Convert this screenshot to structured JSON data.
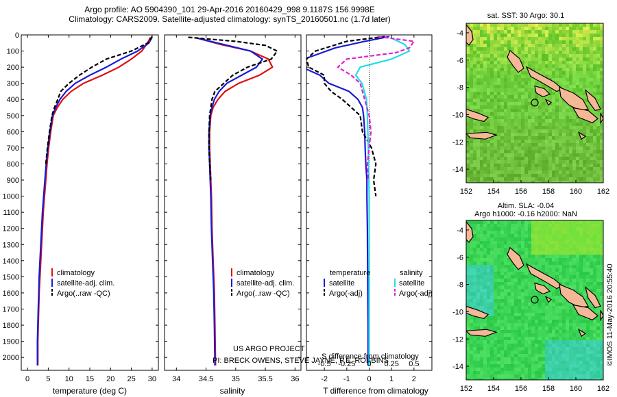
{
  "header": {
    "title_line1": "Argo profile: AO 5904390_101 29-Apr-2016 20160429_998 9.1187S 156.9998E",
    "title_line2": "Climatology: CARS2009. Satellite-adjusted climatology: synTS_20160501.nc (1.7d later)"
  },
  "colors": {
    "climatology": "#e01010",
    "satellite": "#1a1ad8",
    "argo": "#000000",
    "sal_satellite": "#22dde8",
    "sal_argo": "#e020d0",
    "land": "#f5b896"
  },
  "depth_axis": {
    "ticks": [
      0,
      100,
      200,
      300,
      400,
      500,
      600,
      700,
      800,
      900,
      1000,
      1100,
      1200,
      1300,
      1400,
      1500,
      1600,
      1700,
      1800,
      1900,
      2000
    ],
    "range": [
      0,
      2080
    ]
  },
  "chart_data": [
    {
      "type": "line",
      "name": "temperature",
      "xlabel": "temperature (deg C)",
      "xlim": [
        -1.5,
        31.5
      ],
      "xticks": [
        0,
        5,
        10,
        15,
        20,
        25,
        30
      ],
      "legend": {
        "placement": "lower-left",
        "entries": [
          "climatology",
          "satellite-adj. clim.",
          "Argo(..raw -QC)"
        ]
      },
      "series": [
        {
          "name": "climatology",
          "style": "solid",
          "color_key": "climatology",
          "points": [
            [
              29.6,
              15
            ],
            [
              28.9,
              50
            ],
            [
              27.5,
              100
            ],
            [
              25.0,
              150
            ],
            [
              22.0,
              200
            ],
            [
              18.0,
              250
            ],
            [
              13.5,
              300
            ],
            [
              10.5,
              350
            ],
            [
              8.5,
              400
            ],
            [
              7.2,
              450
            ],
            [
              6.2,
              500
            ],
            [
              5.6,
              600
            ],
            [
              5.1,
              700
            ],
            [
              4.7,
              800
            ],
            [
              4.4,
              900
            ],
            [
              4.1,
              1000
            ],
            [
              3.8,
              1100
            ],
            [
              3.6,
              1200
            ],
            [
              3.4,
              1300
            ],
            [
              3.2,
              1400
            ],
            [
              3.0,
              1500
            ],
            [
              2.8,
              1600
            ],
            [
              2.7,
              1700
            ],
            [
              2.6,
              1800
            ],
            [
              2.5,
              1900
            ],
            [
              2.5,
              2050
            ]
          ]
        },
        {
          "name": "satellite",
          "style": "solid",
          "color_key": "satellite",
          "points": [
            [
              30.0,
              15
            ],
            [
              29.2,
              50
            ],
            [
              26.5,
              100
            ],
            [
              22.5,
              150
            ],
            [
              19.0,
              200
            ],
            [
              15.0,
              250
            ],
            [
              11.5,
              300
            ],
            [
              9.3,
              350
            ],
            [
              7.8,
              400
            ],
            [
              6.8,
              450
            ],
            [
              6.0,
              500
            ],
            [
              5.4,
              600
            ],
            [
              4.9,
              700
            ],
            [
              4.5,
              800
            ],
            [
              4.2,
              900
            ],
            [
              3.9,
              1000
            ],
            [
              3.6,
              1100
            ],
            [
              3.4,
              1200
            ],
            [
              3.2,
              1300
            ],
            [
              3.0,
              1400
            ],
            [
              2.8,
              1500
            ],
            [
              2.7,
              1600
            ],
            [
              2.6,
              1700
            ],
            [
              2.5,
              1800
            ],
            [
              2.4,
              1900
            ],
            [
              2.4,
              2050
            ]
          ]
        },
        {
          "name": "Argo",
          "style": "dashed",
          "color_key": "argo",
          "points": [
            [
              30.0,
              10
            ],
            [
              29.0,
              50
            ],
            [
              25.0,
              100
            ],
            [
              19.0,
              150
            ],
            [
              15.5,
              200
            ],
            [
              12.5,
              250
            ],
            [
              10.0,
              300
            ],
            [
              8.0,
              350
            ],
            [
              7.3,
              400
            ],
            [
              6.5,
              450
            ],
            [
              5.9,
              500
            ],
            [
              5.3,
              600
            ],
            [
              4.8,
              700
            ],
            [
              4.4,
              800
            ]
          ]
        }
      ]
    },
    {
      "type": "line",
      "name": "salinity",
      "xlabel": "salinity",
      "xlim": [
        33.8,
        36.1
      ],
      "xticks": [
        34,
        34.5,
        35,
        35.5,
        36
      ],
      "legend": {
        "placement": "lower-right",
        "entries": [
          "climatology",
          "satellite-adj. clim.",
          "Argo(..raw -QC)"
        ]
      },
      "annotation_lines": [
        "US ARGO PROJECT",
        "PI: BRECK OWENS, STEVE JAYNE, P.E. ROBBINS"
      ],
      "series": [
        {
          "name": "climatology",
          "style": "solid",
          "color_key": "climatology",
          "points": [
            [
              34.35,
              20
            ],
            [
              34.75,
              60
            ],
            [
              35.25,
              100
            ],
            [
              35.55,
              150
            ],
            [
              35.62,
              200
            ],
            [
              35.4,
              250
            ],
            [
              35.05,
              300
            ],
            [
              34.82,
              350
            ],
            [
              34.7,
              400
            ],
            [
              34.62,
              450
            ],
            [
              34.58,
              500
            ],
            [
              34.56,
              600
            ],
            [
              34.56,
              700
            ],
            [
              34.57,
              800
            ],
            [
              34.58,
              900
            ],
            [
              34.59,
              1000
            ],
            [
              34.6,
              1200
            ],
            [
              34.62,
              1400
            ],
            [
              34.64,
              1600
            ],
            [
              34.65,
              1800
            ],
            [
              34.66,
              2050
            ]
          ]
        },
        {
          "name": "satellite",
          "style": "solid",
          "color_key": "satellite",
          "points": [
            [
              34.35,
              20
            ],
            [
              34.8,
              60
            ],
            [
              35.25,
              100
            ],
            [
              35.45,
              150
            ],
            [
              35.35,
              200
            ],
            [
              35.1,
              250
            ],
            [
              34.85,
              300
            ],
            [
              34.72,
              350
            ],
            [
              34.64,
              400
            ],
            [
              34.6,
              450
            ],
            [
              34.57,
              500
            ],
            [
              34.55,
              600
            ],
            [
              34.55,
              700
            ],
            [
              34.56,
              800
            ],
            [
              34.57,
              900
            ],
            [
              34.58,
              1000
            ],
            [
              34.59,
              1200
            ],
            [
              34.61,
              1400
            ],
            [
              34.63,
              1600
            ],
            [
              34.64,
              1800
            ],
            [
              34.65,
              2050
            ]
          ]
        },
        {
          "name": "Argo",
          "style": "dashed",
          "color_key": "argo",
          "points": [
            [
              34.2,
              15
            ],
            [
              35.0,
              40
            ],
            [
              35.5,
              65
            ],
            [
              35.7,
              100
            ],
            [
              35.6,
              150
            ],
            [
              35.2,
              200
            ],
            [
              34.95,
              250
            ],
            [
              34.8,
              300
            ],
            [
              34.65,
              350
            ],
            [
              34.6,
              400
            ],
            [
              34.58,
              450
            ],
            [
              34.56,
              500
            ],
            [
              34.55,
              600
            ],
            [
              34.55,
              700
            ],
            [
              34.56,
              800
            ],
            [
              34.58,
              900
            ]
          ]
        }
      ]
    },
    {
      "type": "line",
      "name": "difference",
      "xlabel": "T difference from climatology",
      "top_xlabel": "S difference from climatology",
      "xlim": [
        -2.8,
        2.8
      ],
      "xticks": [
        -2,
        -1,
        0,
        1,
        2
      ],
      "top_ticks": [
        -0.5,
        -0.25,
        0,
        0.25,
        0.5
      ],
      "legend": {
        "placement": "lower-center",
        "headers": [
          "temperature",
          "salinity"
        ],
        "entries": [
          "satellite",
          "Argo(-adj)",
          "satellite",
          "Argo(-adj)"
        ]
      },
      "series": [
        {
          "name": "temperature satellite",
          "style": "solid",
          "color_key": "satellite",
          "points": [
            [
              0.9,
              10
            ],
            [
              -0.2,
              40
            ],
            [
              -1.5,
              80
            ],
            [
              -2.9,
              150
            ],
            [
              -3.0,
              200
            ],
            [
              -2.2,
              250
            ],
            [
              -1.8,
              300
            ],
            [
              -0.9,
              350
            ],
            [
              -0.5,
              400
            ],
            [
              -0.3,
              450
            ],
            [
              -0.25,
              500
            ],
            [
              -0.2,
              600
            ],
            [
              -0.18,
              700
            ],
            [
              -0.15,
              800
            ],
            [
              -0.1,
              900
            ],
            [
              -0.1,
              1000
            ],
            [
              -0.08,
              1200
            ],
            [
              -0.07,
              1400
            ],
            [
              -0.06,
              1600
            ],
            [
              -0.05,
              1800
            ],
            [
              -0.05,
              2050
            ]
          ]
        },
        {
          "name": "temperature Argo",
          "style": "dashed",
          "color_key": "argo",
          "points": [
            [
              0.7,
              10
            ],
            [
              -1.0,
              40
            ],
            [
              -2.4,
              100
            ],
            [
              -2.8,
              150
            ],
            [
              -2.7,
              200
            ],
            [
              -2.0,
              250
            ],
            [
              -2.0,
              300
            ],
            [
              -1.7,
              350
            ],
            [
              -1.2,
              400
            ],
            [
              -0.8,
              450
            ],
            [
              -0.4,
              500
            ],
            [
              -0.3,
              600
            ],
            [
              0.1,
              700
            ],
            [
              0.3,
              800
            ],
            [
              0.2,
              900
            ],
            [
              0.3,
              1000
            ]
          ]
        },
        {
          "name": "salinity satellite",
          "style": "solid",
          "color_key": "sal_satellite",
          "points": [
            [
              0.25,
              20
            ],
            [
              0.4,
              60
            ],
            [
              0.45,
              100
            ],
            [
              0.25,
              150
            ],
            [
              -0.1,
              200
            ],
            [
              -0.15,
              250
            ],
            [
              -0.08,
              300
            ],
            [
              -0.03,
              400
            ],
            [
              -0.02,
              500
            ],
            [
              -0.01,
              700
            ],
            [
              0,
              1000
            ],
            [
              0,
              1500
            ],
            [
              0,
              2050
            ]
          ]
        },
        {
          "name": "salinity Argo",
          "style": "dashed",
          "color_key": "sal_argo",
          "points": [
            [
              0.1,
              10
            ],
            [
              0.5,
              40
            ],
            [
              0.45,
              80
            ],
            [
              0.3,
              110
            ],
            [
              -0.25,
              150
            ],
            [
              -0.35,
              200
            ],
            [
              -0.2,
              250
            ],
            [
              -0.1,
              300
            ],
            [
              -0.05,
              400
            ],
            [
              0,
              500
            ],
            [
              0.02,
              600
            ],
            [
              0,
              700
            ],
            [
              -0.02,
              800
            ],
            [
              -0.01,
              900
            ]
          ]
        }
      ]
    },
    {
      "type": "heatmap",
      "name": "sst-map",
      "title": "sat. SST: 30 Argo: 30.1",
      "xlim": [
        152,
        162
      ],
      "ylim": [
        -15,
        -3.3
      ],
      "xticks": [
        152,
        154,
        156,
        158,
        160,
        162
      ],
      "yticks": [
        -4,
        -6,
        -8,
        -10,
        -12,
        -14
      ],
      "marker": {
        "lon": 157.0,
        "lat": -9.12
      }
    },
    {
      "type": "heatmap",
      "name": "sla-map",
      "title": "Altim. SLA: -0.04",
      "subtitle": "Argo h1000: -0.16 h2000: NaN",
      "xlim": [
        152,
        162
      ],
      "ylim": [
        -15,
        -3.3
      ],
      "xticks": [
        152,
        154,
        156,
        158,
        160,
        162
      ],
      "yticks": [
        -4,
        -6,
        -8,
        -10,
        -12,
        -14
      ],
      "marker": {
        "lon": 157.0,
        "lat": -9.12
      }
    }
  ],
  "footer": {
    "stamp": "©IMOS 11-May-2016 20:55:40"
  }
}
